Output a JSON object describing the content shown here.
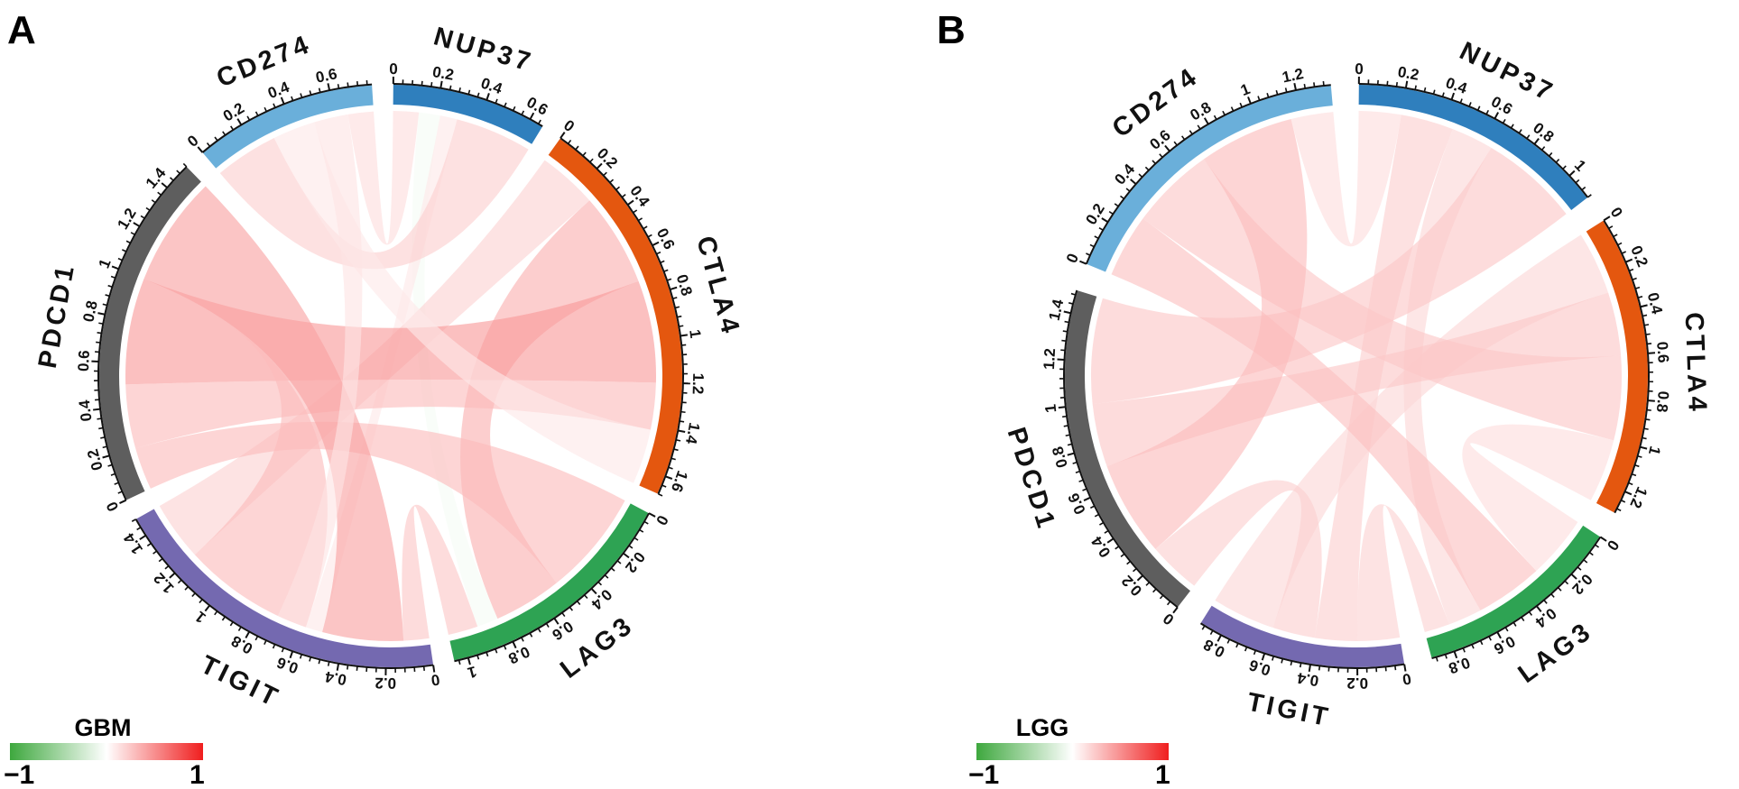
{
  "chart_data": [
    {
      "type": "chord",
      "panel": "A",
      "title": "",
      "legend": {
        "title": "GBM",
        "min_label": "−1",
        "max_label": "1",
        "range": [
          -1,
          1
        ],
        "colors": [
          "#3ea83e",
          "#ffffff",
          "#f01e1e"
        ],
        "placement": "bottom-left"
      },
      "sectors": [
        {
          "name": "NUP37",
          "color": "#2f7fbd",
          "max": 0.66,
          "ticks": [
            "0",
            "0.2",
            "0.4",
            "0.6"
          ]
        },
        {
          "name": "CTLA4",
          "color": "#e4570f",
          "max": 1.68,
          "ticks": [
            "0",
            "0.2",
            "0.4",
            "0.6",
            "0.8",
            "1",
            "1.2",
            "1.4",
            "1.6"
          ]
        },
        {
          "name": "LAG3",
          "color": "#2ea353",
          "max": 1.06,
          "ticks": [
            "0",
            "0.2",
            "0.4",
            "0.6",
            "0.8",
            "1"
          ]
        },
        {
          "name": "TIGIT",
          "color": "#7469b0",
          "max": 1.48,
          "ticks": [
            "0",
            "0.2",
            "0.4",
            "0.6",
            "0.8",
            "1",
            "1.2",
            "1.4"
          ]
        },
        {
          "name": "PDCD1",
          "color": "#5e5e5e",
          "max": 1.52,
          "ticks": [
            "0",
            "0.2",
            "0.4",
            "0.6",
            "0.8",
            "1",
            "1.2",
            "1.4"
          ]
        },
        {
          "name": "CD274",
          "color": "#6aafda",
          "max": 0.78,
          "ticks": [
            "0",
            "0.2",
            "0.4",
            "0.6"
          ]
        }
      ],
      "links": [
        {
          "from": "NUP37",
          "from_range": [
            0.0,
            0.12
          ],
          "to": "CD274",
          "to_range": [
            0.66,
            0.78
          ],
          "value": 0.15
        },
        {
          "from": "NUP37",
          "from_range": [
            0.12,
            0.22
          ],
          "to": "LAG3",
          "to_range": [
            0.82,
            0.92
          ],
          "value": -0.05
        },
        {
          "from": "NUP37",
          "from_range": [
            0.22,
            0.3
          ],
          "to": "TIGIT",
          "to_range": [
            0.5,
            0.58
          ],
          "value": 0.1
        },
        {
          "from": "NUP37",
          "from_range": [
            0.3,
            0.66
          ],
          "to": "CD274",
          "to_range": [
            0.0,
            0.3
          ],
          "value": 0.22
        },
        {
          "from": "CTLA4",
          "from_range": [
            0.0,
            0.28
          ],
          "to": "TIGIT",
          "to_range": [
            1.2,
            1.48
          ],
          "value": 0.2
        },
        {
          "from": "CTLA4",
          "from_range": [
            0.28,
            0.72
          ],
          "to": "LAG3",
          "to_range": [
            0.5,
            0.82
          ],
          "value": 0.35
        },
        {
          "from": "CTLA4",
          "from_range": [
            0.72,
            1.2
          ],
          "to": "PDCD1",
          "to_range": [
            0.5,
            1.0
          ],
          "value": 0.45
        },
        {
          "from": "CTLA4",
          "from_range": [
            1.2,
            1.42
          ],
          "to": "PDCD1",
          "to_range": [
            0.2,
            0.5
          ],
          "value": 0.3
        },
        {
          "from": "CTLA4",
          "from_range": [
            1.42,
            1.68
          ],
          "to": "CD274",
          "to_range": [
            0.3,
            0.5
          ],
          "value": 0.1
        },
        {
          "from": "LAG3",
          "from_range": [
            0.0,
            0.5
          ],
          "to": "PDCD1",
          "to_range": [
            0.0,
            0.2
          ],
          "value": 0.3
        },
        {
          "from": "LAG3",
          "from_range": [
            0.92,
            1.06
          ],
          "to": "TIGIT",
          "to_range": [
            0.0,
            0.12
          ],
          "value": 0.25
        },
        {
          "from": "TIGIT",
          "from_range": [
            0.12,
            0.5
          ],
          "to": "PDCD1",
          "to_range": [
            1.0,
            1.52
          ],
          "value": 0.42
        },
        {
          "from": "TIGIT",
          "from_range": [
            0.58,
            1.2
          ],
          "to": "PDCD1",
          "to_range": [
            1.0,
            1.0
          ],
          "value": 0.3
        },
        {
          "from": "CD274",
          "from_range": [
            0.5,
            0.66
          ],
          "to": "TIGIT",
          "to_range": [
            0.58,
            0.72
          ],
          "value": 0.12
        }
      ]
    },
    {
      "type": "chord",
      "panel": "B",
      "title": "",
      "legend": {
        "title": "LGG",
        "min_label": "−1",
        "max_label": "1",
        "range": [
          -1,
          1
        ],
        "colors": [
          "#3ea83e",
          "#ffffff",
          "#f01e1e"
        ],
        "placement": "bottom-left"
      },
      "sectors": [
        {
          "name": "NUP37",
          "color": "#2f7fbd",
          "max": 1.12,
          "ticks": [
            "0",
            "0.2",
            "0.4",
            "0.6",
            "0.8",
            "1"
          ]
        },
        {
          "name": "CTLA4",
          "color": "#e4570f",
          "max": 1.3,
          "ticks": [
            "0",
            "0.2",
            "0.4",
            "0.6",
            "0.8",
            "1",
            "1.2"
          ]
        },
        {
          "name": "LAG3",
          "color": "#2ea353",
          "max": 0.9,
          "ticks": [
            "0",
            "0.2",
            "0.4",
            "0.6",
            "0.8"
          ]
        },
        {
          "name": "TIGIT",
          "color": "#7469b0",
          "max": 0.9,
          "ticks": [
            "0",
            "0.2",
            "0.4",
            "0.6",
            "0.8"
          ]
        },
        {
          "name": "PDCD1",
          "color": "#5e5e5e",
          "max": 1.5,
          "ticks": [
            "0",
            "0.2",
            "0.4",
            "0.6",
            "0.8",
            "1",
            "1.2",
            "1.4"
          ]
        },
        {
          "name": "CD274",
          "color": "#6aafda",
          "max": 1.35,
          "ticks": [
            "0",
            "0.2",
            "0.4",
            "0.6",
            "0.8",
            "1",
            "1.2"
          ]
        }
      ],
      "links": [
        {
          "from": "NUP37",
          "from_range": [
            0.0,
            0.2
          ],
          "to": "CD274",
          "to_range": [
            1.15,
            1.35
          ],
          "value": 0.15
        },
        {
          "from": "NUP37",
          "from_range": [
            0.2,
            0.45
          ],
          "to": "TIGIT",
          "to_range": [
            0.2,
            0.4
          ],
          "value": 0.22
        },
        {
          "from": "NUP37",
          "from_range": [
            0.45,
            0.65
          ],
          "to": "LAG3",
          "to_range": [
            0.62,
            0.78
          ],
          "value": 0.18
        },
        {
          "from": "NUP37",
          "from_range": [
            0.65,
            1.12
          ],
          "to": "PDCD1",
          "to_range": [
            1.0,
            1.5
          ],
          "value": 0.25
        },
        {
          "from": "CTLA4",
          "from_range": [
            0.0,
            0.3
          ],
          "to": "TIGIT",
          "to_range": [
            0.6,
            0.9
          ],
          "value": 0.18
        },
        {
          "from": "CTLA4",
          "from_range": [
            0.3,
            0.6
          ],
          "to": "PDCD1",
          "to_range": [
            0.7,
            1.0
          ],
          "value": 0.25
        },
        {
          "from": "CTLA4",
          "from_range": [
            0.6,
            1.0
          ],
          "to": "CD274",
          "to_range": [
            0.3,
            0.7
          ],
          "value": 0.25
        },
        {
          "from": "CTLA4",
          "from_range": [
            1.0,
            1.3
          ],
          "to": "LAG3",
          "to_range": [
            0.0,
            0.3
          ],
          "value": 0.15
        },
        {
          "from": "LAG3",
          "from_range": [
            0.3,
            0.62
          ],
          "to": "CD274",
          "to_range": [
            0.0,
            0.3
          ],
          "value": 0.28
        },
        {
          "from": "LAG3",
          "from_range": [
            0.78,
            0.9
          ],
          "to": "TIGIT",
          "to_range": [
            0.0,
            0.2
          ],
          "value": 0.2
        },
        {
          "from": "TIGIT",
          "from_range": [
            0.4,
            0.6
          ],
          "to": "PDCD1",
          "to_range": [
            0.0,
            0.25
          ],
          "value": 0.22
        },
        {
          "from": "PDCD1",
          "from_range": [
            0.25,
            0.7
          ],
          "to": "CD274",
          "to_range": [
            0.7,
            1.15
          ],
          "value": 0.3
        }
      ]
    }
  ]
}
